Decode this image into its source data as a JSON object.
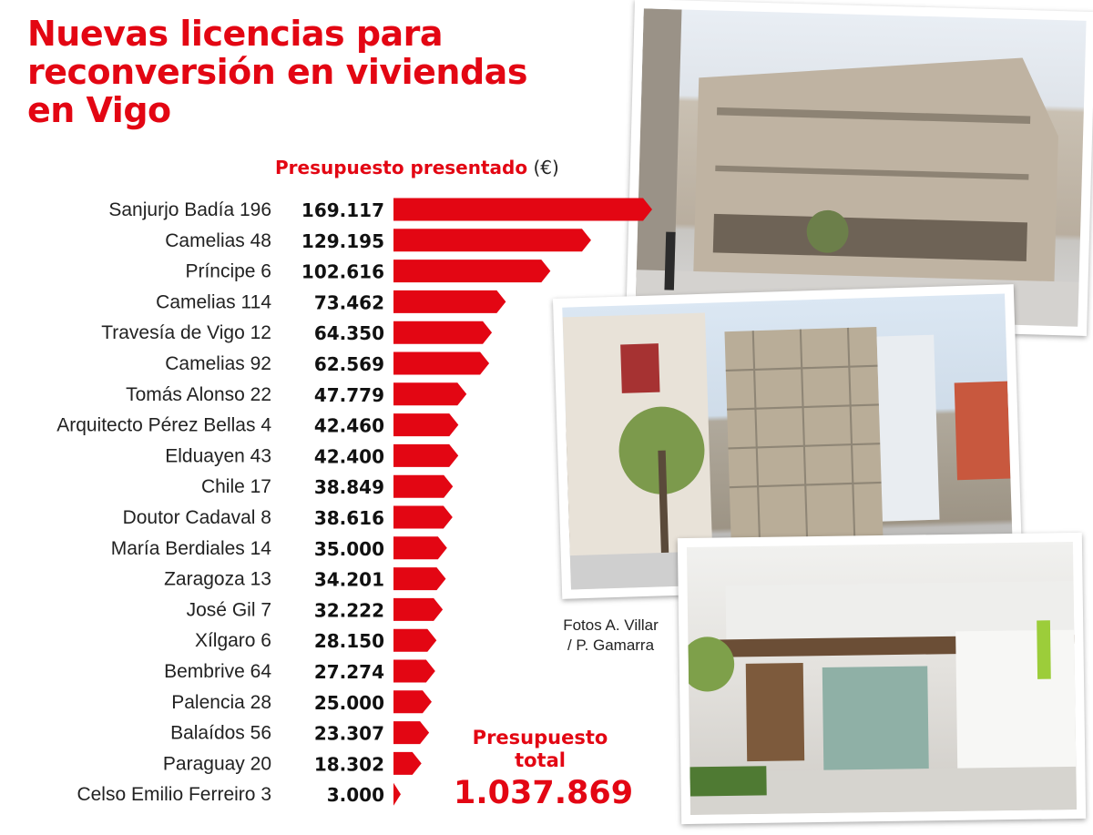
{
  "title_lines": [
    "Nuevas licencias para",
    "reconversión en viviendas",
    "en Vigo"
  ],
  "chart_heading": {
    "label": "Presupuesto presentado",
    "unit": "(€)"
  },
  "photo_credit": [
    "Fotos A. Villar",
    "/ P. Gamarra"
  ],
  "total": {
    "label_1": "Presupuesto",
    "label_2": "total",
    "value": "1.037.869"
  },
  "colors": {
    "accent": "#e30613",
    "text": "#222222"
  },
  "chart_data": {
    "type": "bar",
    "orientation": "horizontal",
    "categories": [
      "Sanjurjo Badía 196",
      "Camelias 48",
      "Príncipe 6",
      "Camelias 114",
      "Travesía de Vigo 12",
      "Camelias 92",
      "Tomás Alonso 22",
      "Arquitecto Pérez Bellas 4",
      "Elduayen 43",
      "Chile 17",
      "Doutor Cadaval 8",
      "María Berdiales 14",
      "Zaragoza 13",
      "José Gil 7",
      "Xílgaro 6",
      "Bembrive 64",
      "Palencia 28",
      "Balaídos 56",
      "Paraguay 20",
      "Celso Emilio Ferreiro 3"
    ],
    "values": [
      169117,
      129195,
      102616,
      73462,
      64350,
      62569,
      47779,
      42460,
      42400,
      38849,
      38616,
      35000,
      34201,
      32222,
      28150,
      27274,
      25000,
      23307,
      18302,
      3000
    ],
    "value_labels": [
      "169.117",
      "129.195",
      "102.616",
      "73.462",
      "64.350",
      "62.569",
      "47.779",
      "42.460",
      "42.400",
      "38.849",
      "38.616",
      "35.000",
      "34.201",
      "32.222",
      "28.150",
      "27.274",
      "25.000",
      "23.307",
      "18.302",
      "3.000"
    ],
    "grid": false,
    "legend": "none"
  }
}
